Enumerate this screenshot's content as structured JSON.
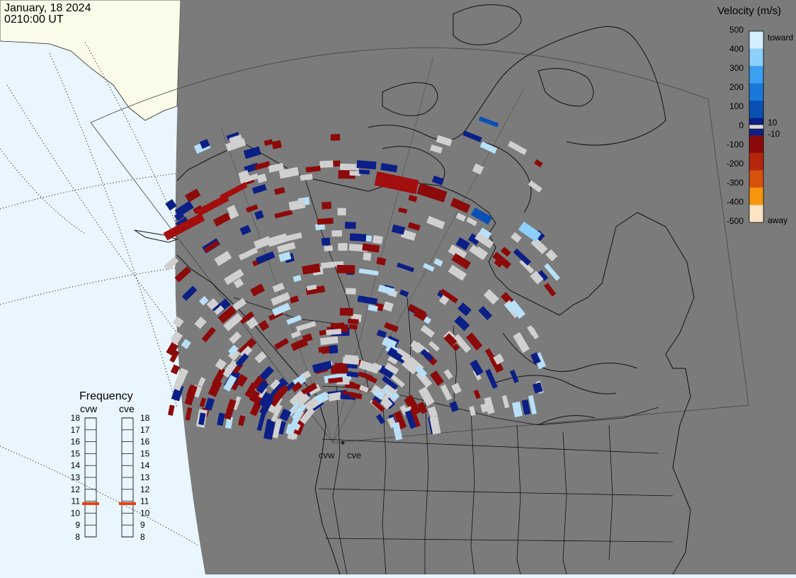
{
  "header": {
    "date": "January, 18 2024",
    "time": "0210:00 UT"
  },
  "colorbar": {
    "title": "Velocity (m/s)",
    "ticks": [
      "500",
      "400",
      "300",
      "200",
      "100",
      "0",
      "-100",
      "-200",
      "-300",
      "-400",
      "-500"
    ],
    "inner_labels": [
      "10",
      "-10"
    ],
    "end_labels": {
      "top": "toward",
      "bottom": "away"
    },
    "colors": [
      "#d6efff",
      "#8dd0fb",
      "#3aa0ef",
      "#1a78d8",
      "#0a4fb4",
      "#0b1f86",
      "#8c0a0a",
      "#b5260b",
      "#d8520c",
      "#f6960e",
      "#fde4c2"
    ]
  },
  "frequency": {
    "title": "Frequency",
    "radars": [
      {
        "name": "cvw",
        "freq_mhz": 10.8
      },
      {
        "name": "cve",
        "freq_mhz": 10.8
      }
    ],
    "scale": [
      "18",
      "17",
      "16",
      "15",
      "14",
      "13",
      "12",
      "11",
      "10",
      "9",
      "8"
    ],
    "marker_color": "#e2430c"
  },
  "map": {
    "radar_labels": [
      "cvw",
      "cve"
    ],
    "colors": {
      "ocean": "#e9f6ff",
      "land_night": "#7b7b7b",
      "land_day": "#fbfbea",
      "gray_echo": "#d0d0d0"
    }
  }
}
